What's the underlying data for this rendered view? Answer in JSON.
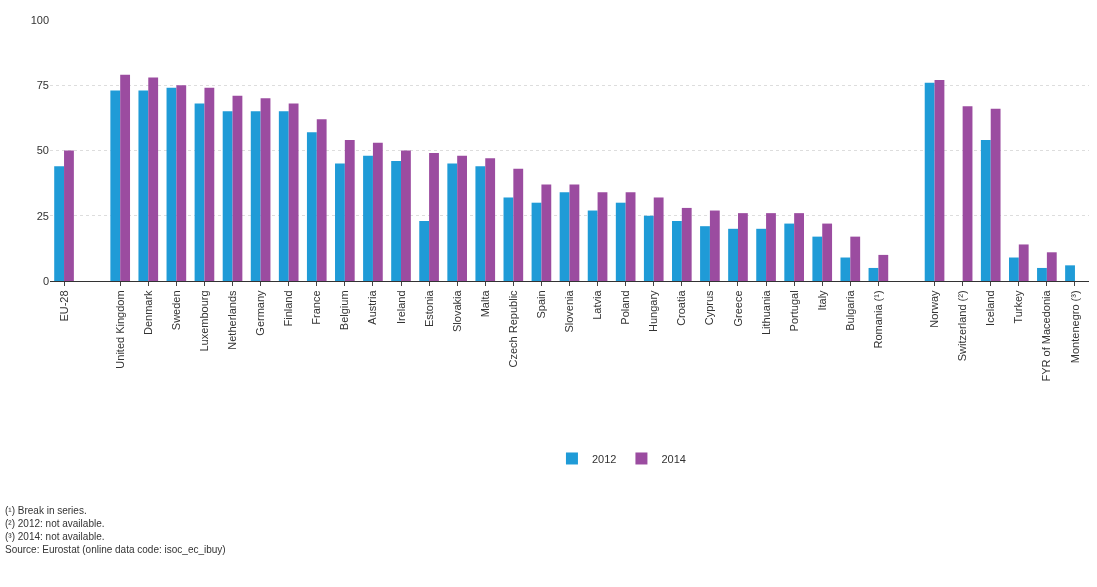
{
  "chart_data": {
    "type": "bar",
    "categories": [
      "EU-28",
      null,
      "United Kingdom",
      "Denmark",
      "Sweden",
      "Luxembourg",
      "Netherlands",
      "Germany",
      "Finland",
      "France",
      "Belgium",
      "Austria",
      "Ireland",
      "Estonia",
      "Slovakia",
      "Malta",
      "Czech Republic",
      "Spain",
      "Slovenia",
      "Latvia",
      "Poland",
      "Hungary",
      "Croatia",
      "Cyprus",
      "Greece",
      "Lithuania",
      "Portugal",
      "Italy",
      "Bulgaria",
      "Romania (¹)",
      null,
      "Norway",
      "Switzerland (²)",
      "Iceland",
      "Turkey",
      "FYR of Macedonia",
      "Montenegro (³)"
    ],
    "series": [
      {
        "name": "2012",
        "color": "#1f9bd7",
        "values": [
          44,
          null,
          73,
          73,
          74,
          68,
          65,
          65,
          65,
          57,
          45,
          48,
          46,
          23,
          45,
          44,
          32,
          30,
          34,
          27,
          30,
          25,
          23,
          21,
          20,
          20,
          22,
          17,
          9,
          5,
          null,
          76,
          null,
          54,
          9,
          5,
          6
        ]
      },
      {
        "name": "2014",
        "color": "#9b4ca0",
        "values": [
          50,
          null,
          79,
          78,
          75,
          74,
          71,
          70,
          68,
          62,
          54,
          53,
          50,
          49,
          48,
          47,
          43,
          37,
          37,
          34,
          34,
          32,
          28,
          27,
          26,
          26,
          26,
          22,
          17,
          10,
          null,
          77,
          67,
          66,
          14,
          11,
          null
        ]
      }
    ],
    "ylim": [
      0,
      100
    ],
    "yticks": [
      0,
      25,
      50,
      75,
      100
    ],
    "grid": "y",
    "legend": "bottom",
    "annotations": [
      "(¹) Break in series.",
      "(²) 2012: not available.",
      "(³) 2014: not available.",
      "Source: Eurostat (online data code: isoc_ec_ibuy)"
    ]
  }
}
